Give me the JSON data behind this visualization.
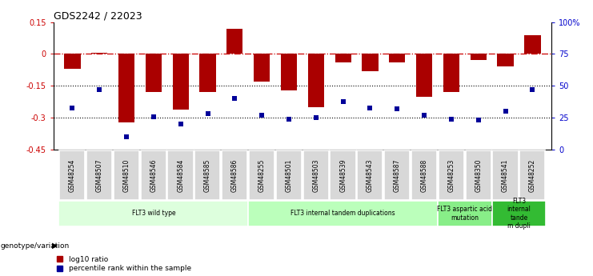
{
  "title": "GDS2242 / 22023",
  "samples": [
    "GSM48254",
    "GSM48507",
    "GSM48510",
    "GSM48546",
    "GSM48584",
    "GSM48585",
    "GSM48586",
    "GSM48255",
    "GSM48501",
    "GSM48503",
    "GSM48539",
    "GSM48543",
    "GSM48587",
    "GSM48588",
    "GSM48253",
    "GSM48350",
    "GSM48541",
    "GSM48252"
  ],
  "log10_ratio": [
    -0.07,
    0.005,
    -0.32,
    -0.18,
    -0.26,
    -0.18,
    0.12,
    -0.13,
    -0.17,
    -0.25,
    -0.04,
    -0.08,
    -0.04,
    -0.2,
    -0.18,
    -0.03,
    -0.06,
    0.09
  ],
  "percentile_rank": [
    33,
    47,
    10,
    26,
    20,
    28,
    40,
    27,
    24,
    25,
    38,
    33,
    32,
    27,
    24,
    23,
    30,
    47
  ],
  "ylim_left": [
    -0.45,
    0.15
  ],
  "ylim_right": [
    0,
    100
  ],
  "yticks_left": [
    -0.45,
    -0.3,
    -0.15,
    0.0,
    0.15
  ],
  "ytick_labels_left": [
    "-0.45",
    "-0.3",
    "-0.15",
    "0",
    "0.15"
  ],
  "yticks_right": [
    0,
    25,
    50,
    75,
    100
  ],
  "ytick_labels_right": [
    "0",
    "25",
    "50",
    "75",
    "100%"
  ],
  "hline_y": 0.0,
  "dotted_lines": [
    -0.15,
    -0.3
  ],
  "bar_color": "#aa0000",
  "scatter_color": "#000099",
  "bar_width": 0.6,
  "groups": [
    {
      "label": "FLT3 wild type",
      "start": 0,
      "end": 7,
      "color": "#ddffdd"
    },
    {
      "label": "FLT3 internal tandem duplications",
      "start": 7,
      "end": 14,
      "color": "#bbffbb"
    },
    {
      "label": "FLT3 aspartic acid\nmutation",
      "start": 14,
      "end": 16,
      "color": "#88ee88"
    },
    {
      "label": "FLT3\ninternal\ntande\nm dupli",
      "start": 16,
      "end": 18,
      "color": "#33bb33"
    }
  ],
  "legend_items": [
    {
      "label": "log10 ratio",
      "color": "#aa0000"
    },
    {
      "label": "percentile rank within the sample",
      "color": "#000099"
    }
  ],
  "genotype_label": "genotype/variation"
}
